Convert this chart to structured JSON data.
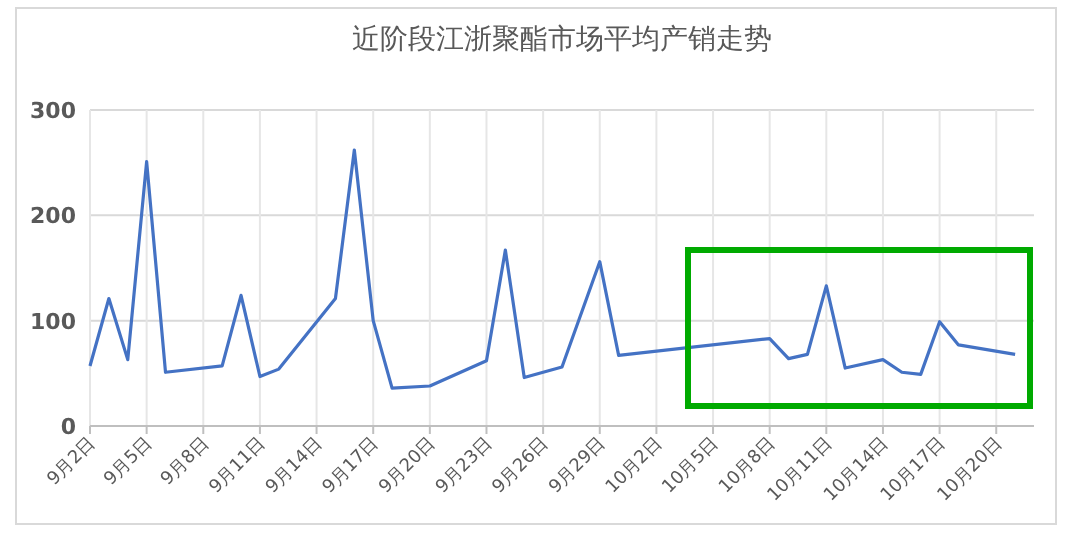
{
  "chart_data": {
    "type": "line",
    "title": "近阶段江浙聚酯市场平均产销走势",
    "x": [
      "--09-02",
      "--09-03",
      "--09-04",
      "--09-05",
      "--09-06",
      "--09-09",
      "--09-10",
      "--09-11",
      "--09-12",
      "--09-15",
      "--09-16",
      "--09-17",
      "--09-18",
      "--09-20",
      "--09-23",
      "--09-24",
      "--09-25",
      "--09-27",
      "--09-29",
      "--09-30",
      "--10-08",
      "--10-09",
      "--10-10",
      "--10-11",
      "--10-12",
      "--10-14",
      "--10-15",
      "--10-16",
      "--10-17",
      "--10-18",
      "--10-21"
    ],
    "series": [
      {
        "color": "#4472c4",
        "values": [
          57,
          121,
          63,
          251,
          51,
          57,
          124,
          47,
          54,
          121,
          262,
          100,
          36,
          38,
          62,
          167,
          46,
          56,
          156,
          67,
          83,
          64,
          68,
          133,
          55,
          63,
          51,
          49,
          99,
          77,
          68
        ]
      }
    ],
    "xlim": [
      "--09-02",
      "--10-22"
    ],
    "xticks": [
      {
        "value": "--09-02",
        "label": "9月2日"
      },
      {
        "value": "--09-05",
        "label": "9月5日"
      },
      {
        "value": "--09-08",
        "label": "9月8日"
      },
      {
        "value": "--09-11",
        "label": "9月11日"
      },
      {
        "value": "--09-14",
        "label": "9月14日"
      },
      {
        "value": "--09-17",
        "label": "9月17日"
      },
      {
        "value": "--09-20",
        "label": "9月20日"
      },
      {
        "value": "--09-23",
        "label": "9月23日"
      },
      {
        "value": "--09-26",
        "label": "9月26日"
      },
      {
        "value": "--09-29",
        "label": "9月29日"
      },
      {
        "value": "--10-02",
        "label": "10月2日"
      },
      {
        "value": "--10-05",
        "label": "10月5日"
      },
      {
        "value": "--10-08",
        "label": "10月8日"
      },
      {
        "value": "--10-11",
        "label": "10月11日"
      },
      {
        "value": "--10-14",
        "label": "10月14日"
      },
      {
        "value": "--10-17",
        "label": "10月17日"
      },
      {
        "value": "--10-20",
        "label": "10月20日"
      }
    ],
    "ylim": [
      0,
      300
    ],
    "yticks": [
      0,
      100,
      200,
      300
    ],
    "grid": true,
    "line_style": "solid",
    "marker": "none"
  }
}
